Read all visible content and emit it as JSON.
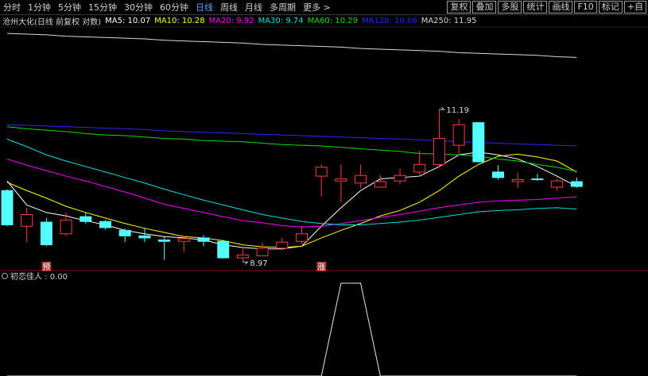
{
  "toolbar": {
    "tabs": [
      "分时",
      "1分钟",
      "5分钟",
      "15分钟",
      "30分钟",
      "60分钟",
      "日线",
      "周线",
      "月线",
      "多周期",
      "更多 >"
    ],
    "active_tab": "日线",
    "buttons": [
      "复权",
      "叠加",
      "多股",
      "统计",
      "画线",
      "F10",
      "标记",
      "+自"
    ]
  },
  "chart_data": [
    {
      "type": "candlestick",
      "title": "沧州大化(日线 前复权 对数)",
      "ylim": [
        8.88,
        12.44
      ],
      "up_color": "#ff3c3c",
      "down_color": "#54ffff",
      "open": [
        10.01,
        9.49,
        9.55,
        9.38,
        9.63,
        9.56,
        9.43,
        9.35,
        9.29,
        9.27,
        9.32,
        9.27,
        9.03,
        9.06,
        9.17,
        9.27,
        10.22,
        10.15,
        10.12,
        10.06,
        10.15,
        10.28,
        10.39,
        10.67,
        11.0,
        10.28,
        10.14,
        10.18,
        10.06,
        10.14
      ],
      "close": [
        9.51,
        9.66,
        9.22,
        9.58,
        9.56,
        9.47,
        9.35,
        9.32,
        9.27,
        9.31,
        9.27,
        9.03,
        9.07,
        9.17,
        9.26,
        9.38,
        10.35,
        10.18,
        10.23,
        10.14,
        10.23,
        10.39,
        10.77,
        10.97,
        10.43,
        10.2,
        10.17,
        10.17,
        10.15,
        10.07
      ],
      "high": [
        10.03,
        9.76,
        9.61,
        9.69,
        9.69,
        9.58,
        9.46,
        9.47,
        9.34,
        9.35,
        9.36,
        9.29,
        9.18,
        9.25,
        9.32,
        9.49,
        10.39,
        10.39,
        10.39,
        10.24,
        10.33,
        10.59,
        11.19,
        11.05,
        11.0,
        10.38,
        10.27,
        10.25,
        10.18,
        10.2
      ],
      "low": [
        9.49,
        9.26,
        9.2,
        9.35,
        9.53,
        9.44,
        9.26,
        9.26,
        9.0,
        9.11,
        9.2,
        9.02,
        8.97,
        9.06,
        9.14,
        9.24,
        9.92,
        9.84,
        10.05,
        10.05,
        10.1,
        10.22,
        10.36,
        10.54,
        10.42,
        10.17,
        10.05,
        10.15,
        10.01,
        10.05
      ],
      "max_label": "11.19",
      "min_label": "8.97",
      "signals": [
        null,
        null,
        "预",
        null,
        null,
        null,
        null,
        null,
        null,
        null,
        null,
        null,
        null,
        null,
        null,
        null,
        "涨",
        null,
        null,
        null,
        null,
        null,
        null,
        null,
        null,
        null,
        null,
        null,
        null,
        null
      ],
      "series": [
        {
          "name": "MA5",
          "legend_label": "MA5: 10.07",
          "color": "#ffffff",
          "values": [
            10.15,
            9.8,
            9.69,
            9.64,
            9.57,
            9.51,
            9.43,
            9.38,
            9.34,
            9.32,
            9.29,
            9.22,
            9.18,
            9.16,
            9.16,
            9.2,
            9.49,
            9.76,
            10.01,
            10.18,
            10.2,
            10.22,
            10.36,
            10.53,
            10.57,
            10.53,
            10.47,
            10.36,
            10.22,
            10.07
          ]
        },
        {
          "name": "MA10",
          "legend_label": "MA10: 10.28",
          "color": "#ffff00",
          "values": [
            10.13,
            10.01,
            9.9,
            9.78,
            9.69,
            9.61,
            9.53,
            9.46,
            9.4,
            9.34,
            9.32,
            9.28,
            9.22,
            9.19,
            9.18,
            9.2,
            9.32,
            9.43,
            9.53,
            9.64,
            9.72,
            9.84,
            10.01,
            10.22,
            10.39,
            10.51,
            10.54,
            10.5,
            10.44,
            10.28
          ]
        },
        {
          "name": "MA20",
          "legend_label": "MA20: 9.92",
          "color": "#ff00ff",
          "values": [
            10.47,
            10.38,
            10.3,
            10.22,
            10.15,
            10.07,
            9.99,
            9.9,
            9.81,
            9.75,
            9.69,
            9.63,
            9.57,
            9.54,
            9.5,
            9.48,
            9.49,
            9.53,
            9.57,
            9.62,
            9.66,
            9.71,
            9.76,
            9.8,
            9.84,
            9.86,
            9.87,
            9.88,
            9.9,
            9.92
          ]
        },
        {
          "name": "MA30",
          "legend_label": "MA30: 9.74",
          "color": "#00e0e0",
          "values": [
            10.76,
            10.65,
            10.53,
            10.44,
            10.36,
            10.28,
            10.2,
            10.12,
            10.03,
            9.95,
            9.87,
            9.8,
            9.73,
            9.66,
            9.61,
            9.56,
            9.53,
            9.51,
            9.51,
            9.53,
            9.55,
            9.58,
            9.62,
            9.66,
            9.7,
            9.72,
            9.73,
            9.75,
            9.76,
            9.74
          ]
        },
        {
          "name": "MA60",
          "legend_label": "MA60: 10.29",
          "color": "#00e000",
          "values": [
            10.94,
            10.91,
            10.89,
            10.87,
            10.84,
            10.82,
            10.81,
            10.79,
            10.77,
            10.76,
            10.74,
            10.73,
            10.72,
            10.7,
            10.68,
            10.67,
            10.66,
            10.64,
            10.62,
            10.6,
            10.58,
            10.55,
            10.54,
            10.53,
            10.51,
            10.47,
            10.44,
            10.39,
            10.35,
            10.29
          ]
        },
        {
          "name": "MA120",
          "legend_label": "MA120: 10.66",
          "color": "#2828ff",
          "values": [
            10.97,
            10.96,
            10.95,
            10.94,
            10.93,
            10.92,
            10.91,
            10.9,
            10.88,
            10.87,
            10.86,
            10.85,
            10.84,
            10.83,
            10.82,
            10.81,
            10.8,
            10.79,
            10.78,
            10.77,
            10.76,
            10.75,
            10.74,
            10.72,
            10.71,
            10.7,
            10.69,
            10.68,
            10.67,
            10.66
          ]
        },
        {
          "name": "MA250",
          "legend_label": "MA250: 11.95",
          "color": "#d8d8d8",
          "values": [
            12.3,
            12.29,
            12.28,
            12.26,
            12.25,
            12.24,
            12.23,
            12.22,
            12.2,
            12.19,
            12.18,
            12.17,
            12.16,
            12.14,
            12.13,
            12.12,
            12.11,
            12.1,
            12.08,
            12.07,
            12.06,
            12.05,
            12.04,
            12.02,
            12.01,
            12.0,
            11.99,
            11.98,
            11.96,
            11.95
          ]
        }
      ]
    },
    {
      "type": "line",
      "title": "初恋佳人 : 0.00",
      "ylim": [
        0,
        1.06
      ],
      "color": "#e8e8e8",
      "values": [
        0,
        0,
        0,
        0,
        0,
        0,
        0,
        0,
        0,
        0,
        0,
        0,
        0,
        0,
        0,
        0,
        0,
        1,
        1,
        0,
        0,
        0,
        0,
        0,
        0,
        0,
        0,
        0,
        0,
        0
      ]
    }
  ]
}
